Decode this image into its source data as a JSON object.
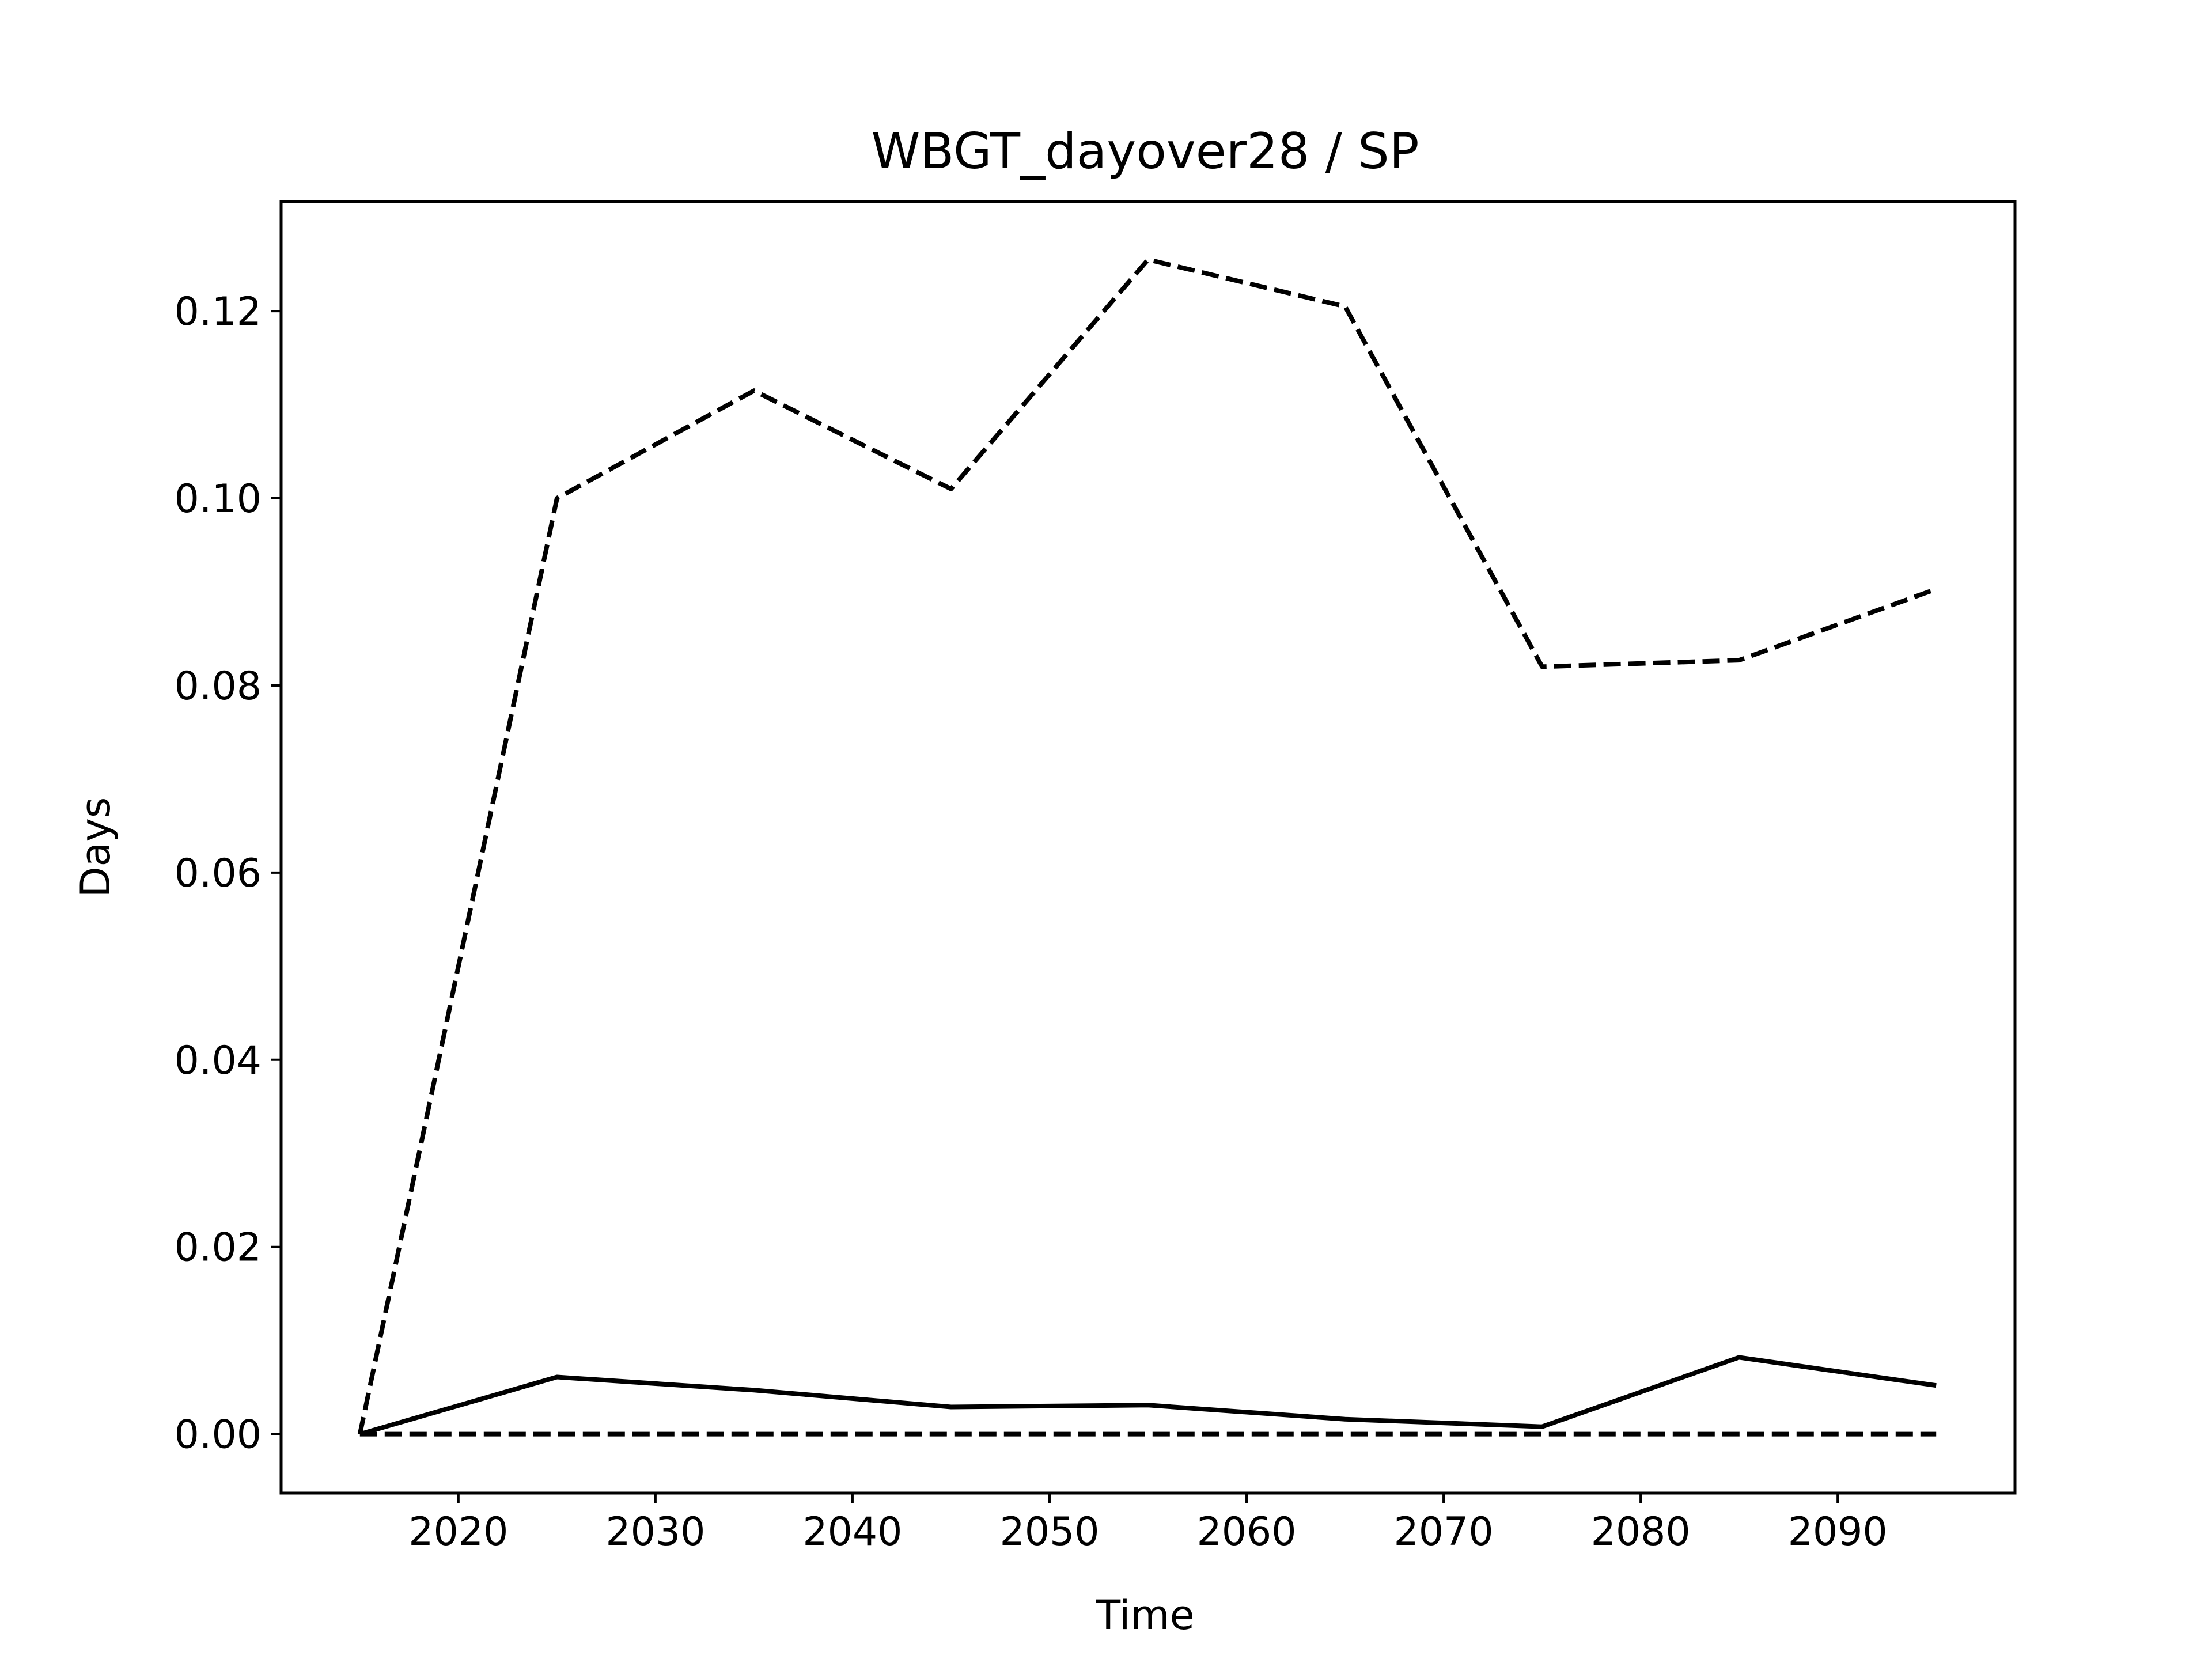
{
  "chart_data": {
    "type": "line",
    "title": "WBGT_dayover28 / SP",
    "xlabel": "Time",
    "ylabel": "Days",
    "xlim": [
      2011,
      2099
    ],
    "ylim": [
      -0.0063,
      0.1317
    ],
    "xticks": [
      2020,
      2030,
      2040,
      2050,
      2060,
      2070,
      2080,
      2090
    ],
    "yticks": [
      0.0,
      0.02,
      0.04,
      0.06,
      0.08,
      0.1,
      0.12
    ],
    "ytick_labels": [
      "0.00",
      "0.02",
      "0.04",
      "0.06",
      "0.08",
      "0.10",
      "0.12"
    ],
    "grid": false,
    "x": [
      2015,
      2025,
      2035,
      2045,
      2055,
      2065,
      2075,
      2085,
      2095
    ],
    "series": [
      {
        "style": "dashed",
        "color": "#000000",
        "values": [
          0.0,
          0.1,
          0.1115,
          0.101,
          0.1255,
          0.1205,
          0.082,
          0.0827,
          0.0903
        ]
      },
      {
        "style": "solid",
        "color": "#000000",
        "values": [
          0.0,
          0.0061,
          0.0047,
          0.0029,
          0.0031,
          0.0016,
          0.0008,
          0.0082,
          0.0052
        ]
      },
      {
        "style": "dashed",
        "color": "#000000",
        "values": [
          0.0,
          0.0,
          0.0,
          0.0,
          0.0,
          0.0,
          0.0,
          0.0,
          0.0
        ]
      }
    ]
  }
}
